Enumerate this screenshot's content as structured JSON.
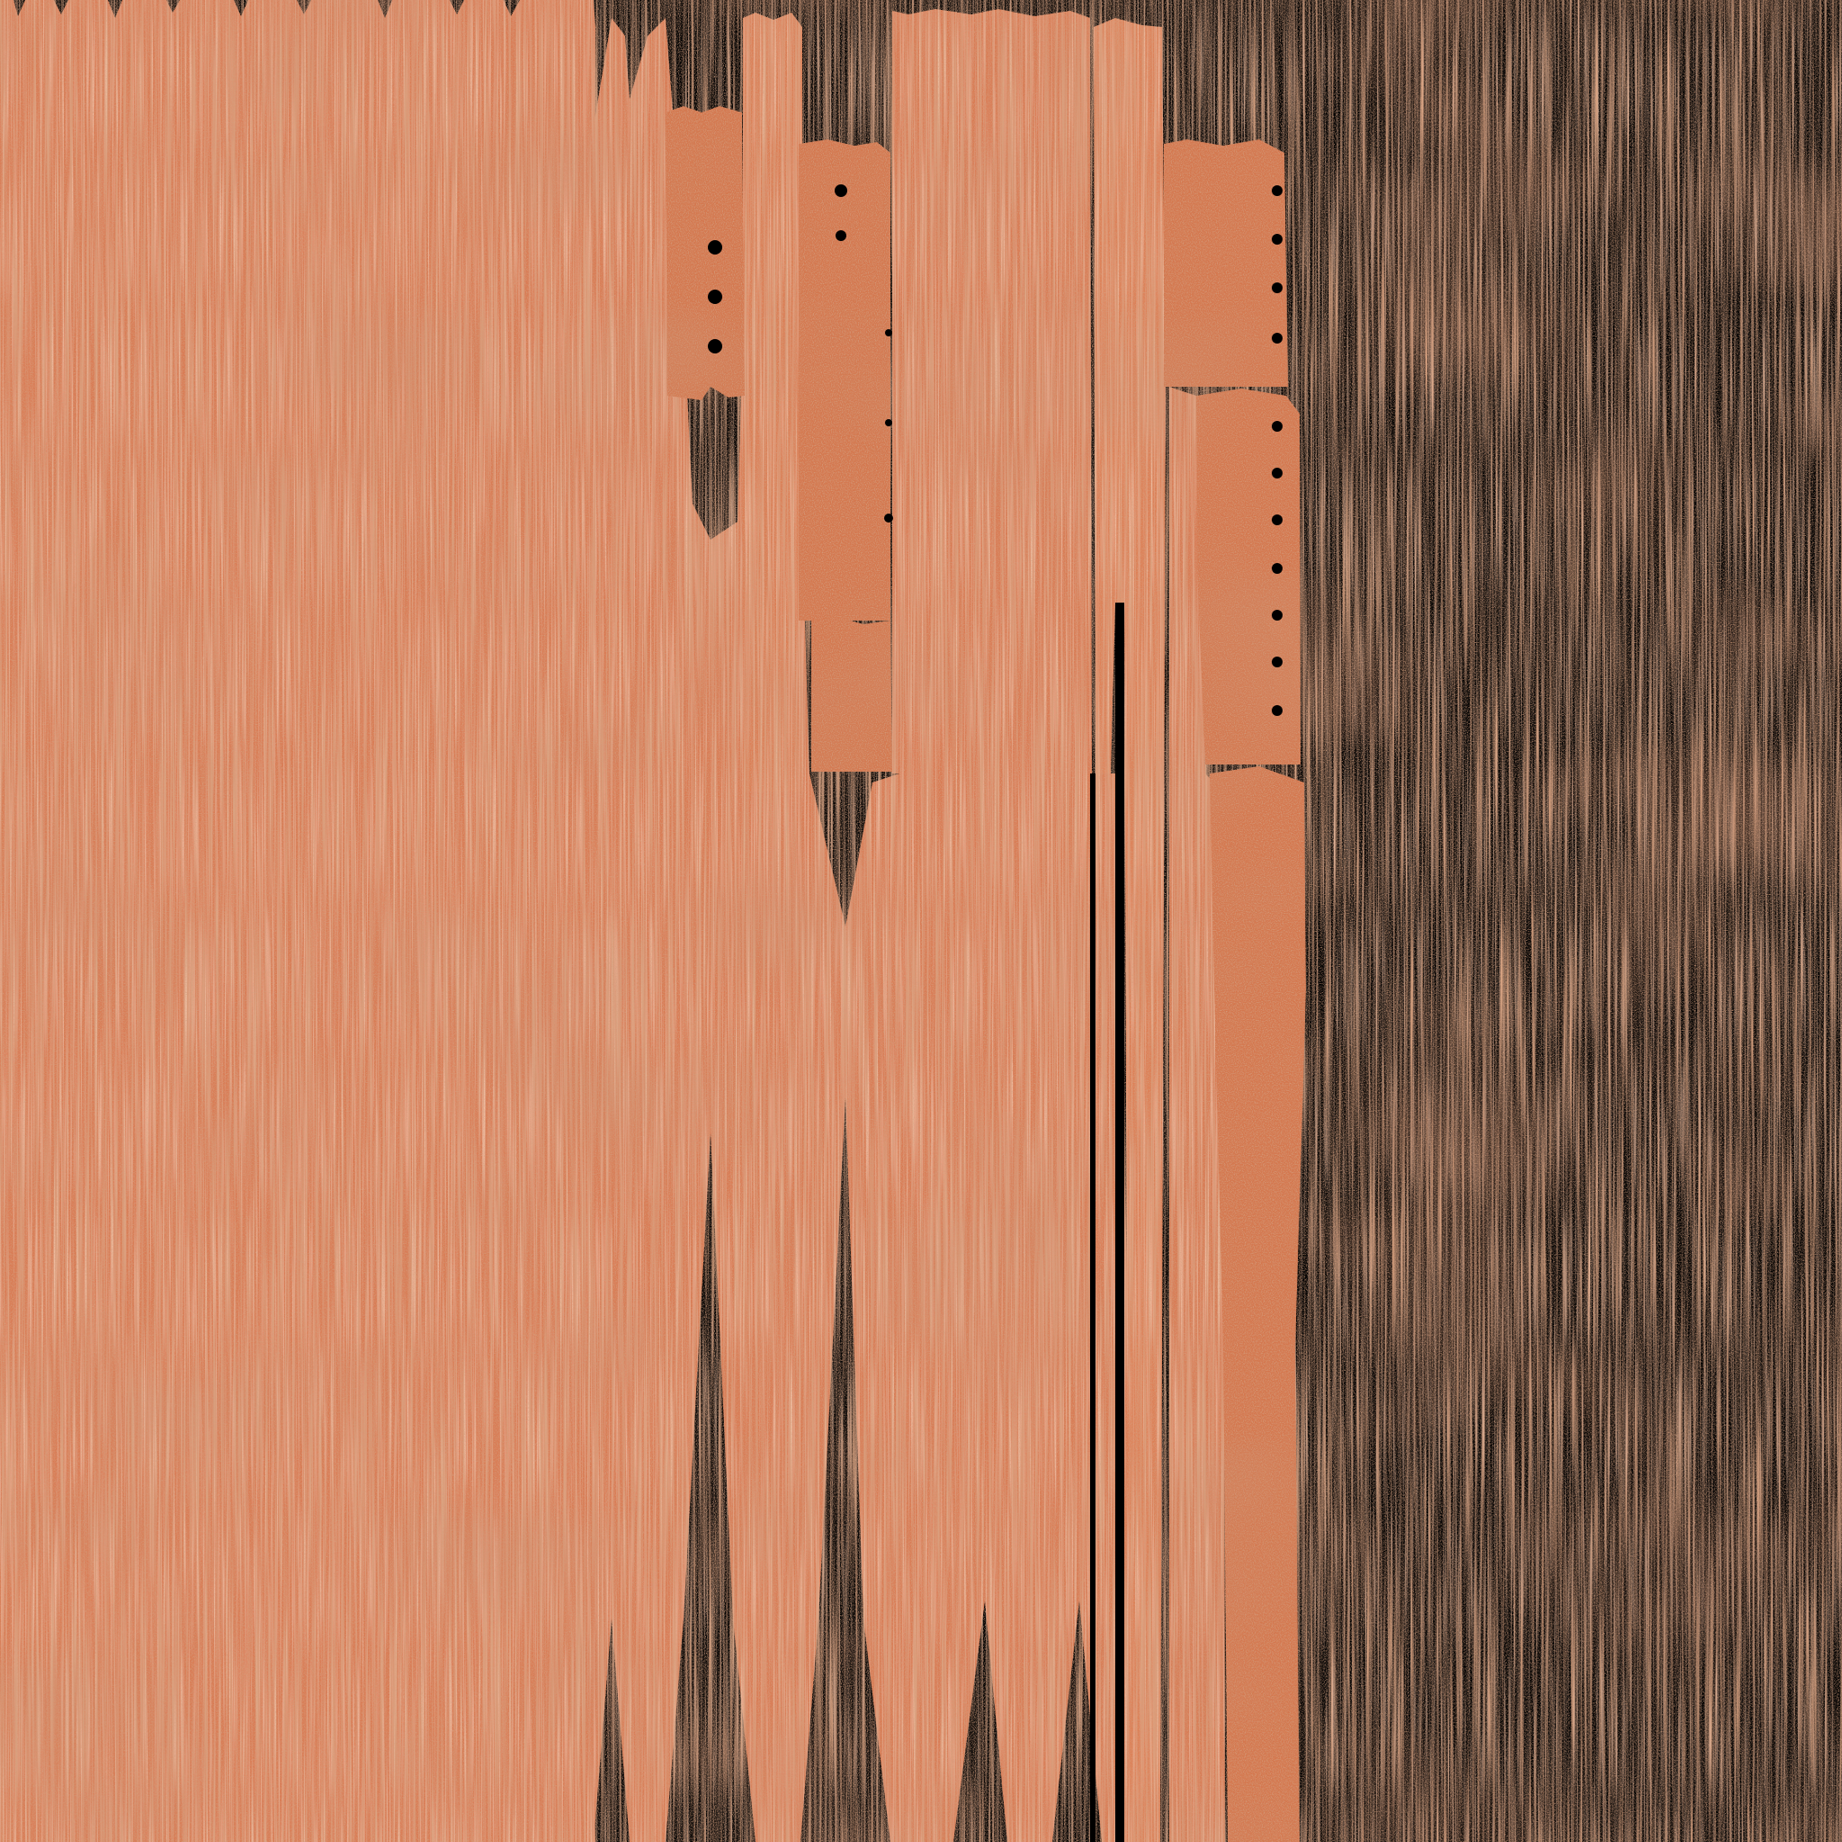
{
  "colors": {
    "background": "#000000",
    "hair_base": "#d97c55",
    "hair_light": "#ee9068",
    "hair_dark": "#b8613c",
    "scalp_base": "#d4784f",
    "scalp_speckle": "#b05e38"
  },
  "atlas": {
    "kind": "hair-texture-uv-atlas",
    "background": "black",
    "regions": [
      {
        "name": "main-hair-panel",
        "type": "strand",
        "variant": "wide"
      },
      {
        "name": "zigzag-lower-band",
        "type": "strand",
        "variant": "zigzag"
      },
      {
        "name": "narrow-hair-strip-1",
        "type": "strand",
        "variant": "narrow"
      },
      {
        "name": "scalp-patch-1",
        "type": "scalp",
        "variant": "small"
      },
      {
        "name": "scalp-patch-2",
        "type": "scalp",
        "variant": "tall"
      },
      {
        "name": "scalp-patch-3",
        "type": "scalp",
        "variant": "small"
      },
      {
        "name": "hair-strip-2",
        "type": "strand",
        "variant": "medium"
      },
      {
        "name": "hair-strip-3",
        "type": "strand",
        "variant": "narrow"
      },
      {
        "name": "hair-strip-4",
        "type": "strand",
        "variant": "narrow"
      },
      {
        "name": "scalp-patch-4",
        "type": "scalp",
        "variant": "medium"
      },
      {
        "name": "scalp-patch-5",
        "type": "scalp",
        "variant": "tall"
      },
      {
        "name": "scalp-patch-6",
        "type": "scalp",
        "variant": "tall"
      }
    ]
  }
}
